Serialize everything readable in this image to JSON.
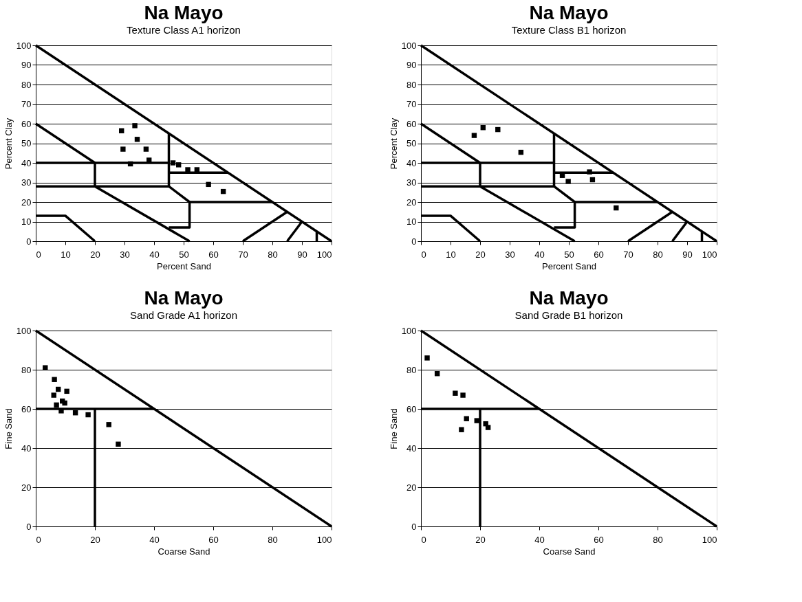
{
  "chart_data": [
    {
      "type": "scatter",
      "title": "Na  Mayo",
      "subtitle": "Texture Class   A1 horizon",
      "xlabel": "Percent Sand",
      "ylabel": "Percent Clay",
      "xlim": [
        0,
        100
      ],
      "ylim": [
        0,
        100
      ],
      "xticks": [
        0,
        10,
        20,
        30,
        40,
        50,
        60,
        70,
        80,
        90,
        100
      ],
      "yticks": [
        0,
        10,
        20,
        30,
        40,
        50,
        60,
        70,
        80,
        90,
        100
      ],
      "grid": "y",
      "series": [
        {
          "marker": "square",
          "color": "#000000",
          "x": [
            29,
            33.5,
            34.3,
            29.5,
            37.3,
            38.3,
            32,
            46.4,
            48.3,
            51.4,
            54.5,
            58.4,
            63.4
          ],
          "values": [
            56.4,
            59,
            52,
            47,
            47,
            41.4,
            39.5,
            40,
            39,
            36.5,
            36.5,
            29,
            25.4
          ]
        },
        {
          "type": "line",
          "color": "#000000",
          "x": [
            0,
            100
          ],
          "values": [
            100,
            0
          ]
        },
        {
          "type": "line",
          "color": "#000000",
          "x": [
            0,
            20,
            20
          ],
          "values": [
            60,
            40,
            28
          ]
        },
        {
          "type": "line",
          "color": "#000000",
          "x": [
            0,
            45
          ],
          "values": [
            40,
            40
          ]
        },
        {
          "type": "line",
          "color": "#000000",
          "x": [
            0,
            45,
            45
          ],
          "values": [
            28,
            28,
            55
          ]
        },
        {
          "type": "line",
          "color": "#000000",
          "x": [
            20,
            52
          ],
          "values": [
            28,
            0
          ]
        },
        {
          "type": "line",
          "color": "#000000",
          "x": [
            45,
            52,
            52,
            45
          ],
          "values": [
            28,
            20,
            7,
            7
          ]
        },
        {
          "type": "line",
          "color": "#000000",
          "x": [
            52,
            80
          ],
          "values": [
            20,
            20
          ]
        },
        {
          "type": "line",
          "color": "#000000",
          "x": [
            45,
            65
          ],
          "values": [
            35,
            35
          ]
        },
        {
          "type": "line",
          "color": "#000000",
          "x": [
            0,
            10,
            20
          ],
          "values": [
            13,
            13,
            0
          ]
        },
        {
          "type": "line",
          "color": "#000000",
          "x": [
            70,
            85
          ],
          "values": [
            0,
            15
          ]
        },
        {
          "type": "line",
          "color": "#000000",
          "x": [
            85,
            90
          ],
          "values": [
            0,
            10
          ]
        },
        {
          "type": "line",
          "color": "#000000",
          "x": [
            95,
            95
          ],
          "values": [
            0,
            5
          ]
        }
      ]
    },
    {
      "type": "scatter",
      "title": "Na  Mayo",
      "subtitle": "Texture Class   B1 horizon",
      "xlabel": "Percent Sand",
      "ylabel": "Percent Clay",
      "xlim": [
        0,
        100
      ],
      "ylim": [
        0,
        100
      ],
      "xticks": [
        0,
        10,
        20,
        30,
        40,
        50,
        60,
        70,
        80,
        90,
        100
      ],
      "yticks": [
        0,
        10,
        20,
        30,
        40,
        50,
        60,
        70,
        80,
        90,
        100
      ],
      "grid": "y",
      "series": [
        {
          "marker": "square",
          "color": "#000000",
          "x": [
            18,
            21,
            26,
            33.8,
            47.8,
            49.8,
            57,
            58,
            66
          ],
          "values": [
            54,
            58,
            57,
            45.4,
            33.6,
            30.5,
            35.4,
            31.4,
            17
          ]
        },
        {
          "type": "line",
          "color": "#000000",
          "x": [
            0,
            100
          ],
          "values": [
            100,
            0
          ]
        },
        {
          "type": "line",
          "color": "#000000",
          "x": [
            0,
            20,
            20
          ],
          "values": [
            60,
            40,
            28
          ]
        },
        {
          "type": "line",
          "color": "#000000",
          "x": [
            0,
            45
          ],
          "values": [
            40,
            40
          ]
        },
        {
          "type": "line",
          "color": "#000000",
          "x": [
            0,
            45,
            45
          ],
          "values": [
            28,
            28,
            55
          ]
        },
        {
          "type": "line",
          "color": "#000000",
          "x": [
            20,
            52
          ],
          "values": [
            28,
            0
          ]
        },
        {
          "type": "line",
          "color": "#000000",
          "x": [
            45,
            52,
            52,
            45
          ],
          "values": [
            28,
            20,
            7,
            7
          ]
        },
        {
          "type": "line",
          "color": "#000000",
          "x": [
            52,
            80
          ],
          "values": [
            20,
            20
          ]
        },
        {
          "type": "line",
          "color": "#000000",
          "x": [
            45,
            65
          ],
          "values": [
            35,
            35
          ]
        },
        {
          "type": "line",
          "color": "#000000",
          "x": [
            0,
            10,
            20
          ],
          "values": [
            13,
            13,
            0
          ]
        },
        {
          "type": "line",
          "color": "#000000",
          "x": [
            70,
            85
          ],
          "values": [
            0,
            15
          ]
        },
        {
          "type": "line",
          "color": "#000000",
          "x": [
            85,
            90
          ],
          "values": [
            0,
            10
          ]
        },
        {
          "type": "line",
          "color": "#000000",
          "x": [
            95,
            95
          ],
          "values": [
            0,
            5
          ]
        }
      ]
    },
    {
      "type": "scatter",
      "title": "Na  Mayo",
      "subtitle": "Sand Grade A1 horizon",
      "xlabel": "Coarse Sand",
      "ylabel": "Fine Sand",
      "xlim": [
        0,
        100
      ],
      "ylim": [
        0,
        100
      ],
      "xticks": [
        0,
        20,
        40,
        60,
        80,
        100
      ],
      "yticks": [
        0,
        20,
        40,
        60,
        80,
        100
      ],
      "grid": "y",
      "series": [
        {
          "marker": "square",
          "color": "#000000",
          "x": [
            3.2,
            6.3,
            7.6,
            10.5,
            6.1,
            9,
            9.8,
            7,
            8.6,
            13.4,
            17.7,
            24.7,
            27.9
          ],
          "values": [
            81,
            75,
            70,
            69,
            67,
            64,
            63,
            62,
            59,
            58,
            57,
            52,
            42
          ]
        },
        {
          "type": "line",
          "color": "#000000",
          "x": [
            0,
            100
          ],
          "values": [
            100,
            0
          ]
        },
        {
          "type": "line",
          "color": "#000000",
          "x": [
            0,
            40
          ],
          "values": [
            60,
            60
          ]
        },
        {
          "type": "line",
          "color": "#000000",
          "x": [
            20,
            20
          ],
          "values": [
            60,
            0
          ]
        }
      ]
    },
    {
      "type": "scatter",
      "title": "Na  Mayo",
      "subtitle": "Sand Grade B1 horizon",
      "xlabel": "Coarse Sand",
      "ylabel": "Fine Sand",
      "xlim": [
        0,
        100
      ],
      "ylim": [
        0,
        100
      ],
      "xticks": [
        0,
        20,
        40,
        60,
        80,
        100
      ],
      "yticks": [
        0,
        20,
        40,
        60,
        80,
        100
      ],
      "grid": "y",
      "series": [
        {
          "marker": "square",
          "color": "#000000",
          "x": [
            2.1,
            5.5,
            11.6,
            14.2,
            15.4,
            13.7,
            18.9,
            21.9,
            22.7
          ],
          "values": [
            86,
            78,
            68,
            67,
            55,
            49.4,
            54,
            52.4,
            50.5
          ]
        },
        {
          "type": "line",
          "color": "#000000",
          "x": [
            0,
            100
          ],
          "values": [
            100,
            0
          ]
        },
        {
          "type": "line",
          "color": "#000000",
          "x": [
            0,
            40
          ],
          "values": [
            60,
            60
          ]
        },
        {
          "type": "line",
          "color": "#000000",
          "x": [
            20,
            20
          ],
          "values": [
            60,
            0
          ]
        }
      ]
    }
  ]
}
